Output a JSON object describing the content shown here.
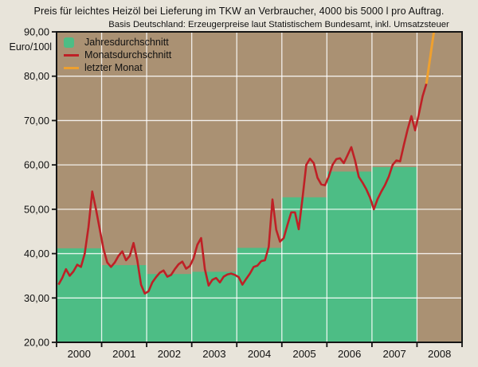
{
  "title": "Preis für leichtes Heizöl bei Lieferung im TKW an Verbraucher, 4000 bis 5000 l pro Auftrag.",
  "subtitle": "Basis Deutschland: Erzeugerpreise laut Statistischem Bundesamt, inkl. Umsatzsteuer",
  "y_axis_unit": "Euro/100l",
  "legend": {
    "annual": "Jahresdurchschnitt",
    "monthly": "Monatsdurchschnitt",
    "last_month": "letzter Monat"
  },
  "colors": {
    "outer_background": "#e8e4da",
    "plot_background": "#aa9173",
    "bar_green": "#4dbd85",
    "line_red": "#bf2026",
    "line_orange": "#efa02e",
    "grid_white": "#ffffff",
    "frame_black": "#141414"
  },
  "axes": {
    "y_ticks": [
      "20,00",
      "30,00",
      "40,00",
      "50,00",
      "60,00",
      "70,00",
      "80,00",
      "90,00"
    ],
    "y_min": 20,
    "y_max": 90,
    "x_ticks": [
      "2000",
      "2001",
      "2002",
      "2003",
      "2004",
      "2005",
      "2006",
      "2007",
      "2008"
    ]
  },
  "chart_data": [
    {
      "type": "bar",
      "name": "Jahresdurchschnitt",
      "categories": [
        "2000",
        "2001",
        "2002",
        "2003",
        "2004",
        "2005",
        "2006",
        "2007"
      ],
      "values": [
        41.2,
        37.4,
        35.4,
        35.9,
        41.3,
        52.7,
        58.5,
        59.5
      ],
      "ylabel": "Euro/100l",
      "ylim": [
        20,
        90
      ]
    },
    {
      "type": "line",
      "name": "Monatsdurchschnitt",
      "start": "2000-01",
      "values_by_year": {
        "2000": [
          33.0,
          34.5,
          36.5,
          35.0,
          36.0,
          37.5,
          37.0,
          40.0,
          46.0,
          54.0,
          50.0,
          45.5
        ],
        "2001": [
          41.0,
          38.0,
          37.0,
          38.0,
          39.5,
          40.5,
          38.5,
          39.5,
          42.4,
          38.5,
          33.0,
          31.0
        ],
        "2002": [
          31.5,
          33.5,
          34.7,
          35.7,
          36.2,
          34.8,
          35.2,
          36.5,
          37.6,
          38.2,
          36.6,
          37.2
        ],
        "2003": [
          39.0,
          42.0,
          43.5,
          36.5,
          32.8,
          34.1,
          34.5,
          33.5,
          34.8,
          35.3,
          35.5,
          35.2
        ],
        "2004": [
          34.7,
          33.0,
          34.3,
          35.5,
          37.0,
          37.3,
          38.3,
          38.5,
          41.5,
          52.2,
          45.4,
          42.7
        ],
        "2005": [
          43.5,
          46.5,
          49.3,
          49.3,
          45.5,
          52.5,
          60.0,
          61.4,
          60.4,
          57.1,
          55.6,
          55.4
        ],
        "2006": [
          57.4,
          60.0,
          61.3,
          61.5,
          60.4,
          62.2,
          64.0,
          61.0,
          57.3,
          56.0,
          54.5,
          52.6
        ],
        "2007": [
          50.0,
          52.3,
          54.0,
          55.5,
          57.4,
          60.0,
          61.0,
          60.8,
          64.5,
          68.0,
          71.0,
          67.8
        ],
        "2008": [
          71.5,
          75.5,
          78.3
        ]
      },
      "ylim": [
        20,
        90
      ]
    },
    {
      "type": "line",
      "name": "letzter Monat",
      "from": {
        "month": "2008-03",
        "value": 78.3
      },
      "to": {
        "month": "2008-05",
        "value": 90.0
      },
      "clipped_at_top": true
    }
  ]
}
